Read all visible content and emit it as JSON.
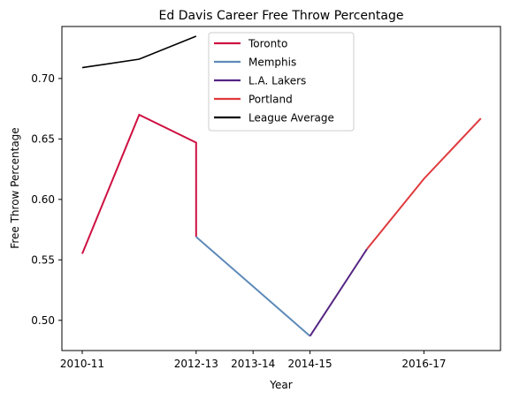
{
  "chart_data": {
    "type": "line",
    "title": "Ed Davis  Career Free Throw Percentage",
    "xlabel": "Year",
    "ylabel": "Free Throw Percentage",
    "x_ticks": [
      "2010-11",
      "2012-13",
      "2013-14",
      "2014-15",
      "2016-17"
    ],
    "y_ticks": [
      "0.50",
      "0.55",
      "0.60",
      "0.65",
      "0.70"
    ],
    "ylim": [
      0.475,
      0.743
    ],
    "grid": false,
    "legend_position": "top-center",
    "series": [
      {
        "name": "Toronto",
        "color": "#CE1141",
        "points": [
          {
            "x": "2010-11",
            "y": 0.555
          },
          {
            "x": "2011-12",
            "y": 0.67
          },
          {
            "x": "2012-13",
            "y": 0.647
          },
          {
            "x": "2012-13",
            "y": 0.569
          }
        ]
      },
      {
        "name": "Memphis",
        "color": "#5D8AB8",
        "points": [
          {
            "x": "2012-13",
            "y": 0.569
          },
          {
            "x": "2013-14",
            "y": 0.528
          },
          {
            "x": "2014-15",
            "y": 0.487
          }
        ]
      },
      {
        "name": "L.A. Lakers",
        "color": "#552583",
        "points": [
          {
            "x": "2014-15",
            "y": 0.487
          },
          {
            "x": "2015-16",
            "y": 0.559
          }
        ]
      },
      {
        "name": "Portland",
        "color": "#E03A3E",
        "points": [
          {
            "x": "2015-16",
            "y": 0.559
          },
          {
            "x": "2016-17",
            "y": 0.617
          },
          {
            "x": "2017-18",
            "y": 0.667
          }
        ]
      },
      {
        "name": "League Average",
        "color": "#000000",
        "points": [
          {
            "x": "2010-11",
            "y": 0.709
          },
          {
            "x": "2011-12",
            "y": 0.716
          },
          {
            "x": "2012-13",
            "y": 0.735
          }
        ]
      }
    ]
  }
}
